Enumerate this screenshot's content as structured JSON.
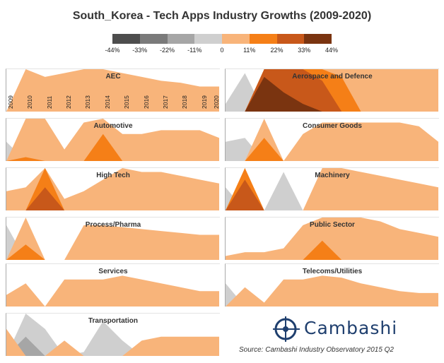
{
  "chart_data": {
    "type": "area",
    "title": "South_Korea - Tech Apps Industry Growths (2009-2020)",
    "years": [
      "2009",
      "2010",
      "2011",
      "2012",
      "2013",
      "2014",
      "2015",
      "2016",
      "2017",
      "2018",
      "2019",
      "2020"
    ],
    "legend": {
      "labels": [
        "-44%",
        "-33%",
        "-22%",
        "-11%",
        "0",
        "11%",
        "22%",
        "33%",
        "44%"
      ],
      "colors": [
        "#4d4d4d",
        "#7a7a7a",
        "#a6a6a6",
        "#cfcfcf",
        "#f8b47a",
        "#f57f17",
        "#c8581a",
        "#7a3410"
      ]
    },
    "color_scale": {
      "neg_colors": [
        "#cfcfcf",
        "#a6a6a6",
        "#7a7a7a",
        "#4d4d4d"
      ],
      "pos_colors": [
        "#f8b47a",
        "#f57f17",
        "#c8581a",
        "#7a3410"
      ],
      "band_width": 11,
      "ymax": 11
    },
    "panels": [
      {
        "name": "AEC",
        "values": [
          0,
          11,
          9,
          10,
          11,
          11,
          10,
          9,
          8,
          7.5,
          6.5,
          6.5
        ]
      },
      {
        "name": "Aerospace and Defence",
        "values": [
          -2,
          -10,
          42,
          38,
          35,
          30,
          20,
          11,
          11,
          11,
          11,
          11
        ]
      },
      {
        "name": "Automotive",
        "values": [
          -5,
          12,
          11,
          3,
          10,
          18,
          7,
          7,
          8,
          8,
          8,
          6
        ]
      },
      {
        "name": "Consumer Goods",
        "values": [
          -5,
          -6,
          17,
          0,
          7,
          10,
          10,
          10,
          10,
          10,
          9,
          5
        ]
      },
      {
        "name": "High Tech",
        "values": [
          5,
          6,
          28,
          3,
          5,
          8,
          11,
          10,
          10,
          9,
          8,
          7
        ]
      },
      {
        "name": "Machinery",
        "values": [
          -6,
          30,
          0,
          -10,
          0,
          11,
          11,
          10,
          9,
          8,
          7,
          6
        ]
      },
      {
        "name": "Process/Pharma",
        "values": [
          -9,
          15,
          0,
          0,
          9,
          9,
          8.5,
          8,
          7.5,
          7,
          6.5,
          6.5
        ]
      },
      {
        "name": "Public Sector",
        "values": [
          1,
          2,
          2,
          3,
          9,
          16,
          11,
          11,
          10,
          8,
          7,
          6
        ]
      },
      {
        "name": "Services",
        "values": [
          3,
          6,
          0,
          7,
          7,
          7,
          8,
          7,
          6,
          5,
          4,
          4
        ]
      },
      {
        "name": "Telecoms/Utilities",
        "values": [
          -6,
          5,
          1,
          7,
          7,
          8,
          7.5,
          6,
          5,
          4,
          3.5,
          3.5
        ]
      },
      {
        "name": "Transportation",
        "values": [
          7,
          -16,
          -7,
          4,
          -1,
          -9,
          -4,
          4,
          5,
          5,
          5,
          5
        ]
      }
    ],
    "source": "Source: Cambashi Industry Observatory 2015 Q2",
    "logo_text": "Cambashi"
  }
}
